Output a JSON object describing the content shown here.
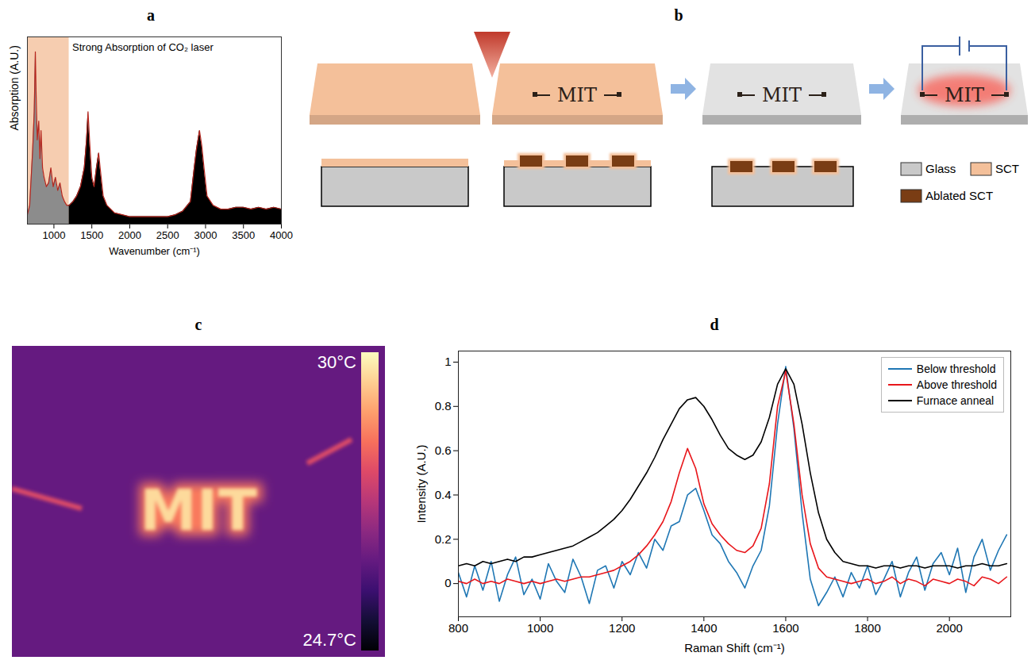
{
  "chart_data": [
    {
      "type": "area",
      "title": "a",
      "x_label": "Wavenumber (cm⁻¹)",
      "y_label": "Absorption (A.U.)",
      "annotation": "Strong Absorption of CO₂ laser",
      "highlight": {
        "x": [
          650,
          1200
        ],
        "color": "#f6cdb0"
      },
      "xlim": [
        650,
        4000
      ],
      "xticks": [
        1000,
        1500,
        2000,
        2500,
        3000,
        3500,
        4000
      ],
      "ylim": [
        0,
        1
      ],
      "yticks": [],
      "tick_labels": "x",
      "grid": false,
      "series": [
        {
          "color": "#8c8c8c",
          "x": [
            650,
            680,
            700,
            720,
            740,
            755,
            765,
            780,
            800,
            815,
            830,
            850,
            870,
            900,
            930,
            960,
            990,
            1020,
            1050,
            1080,
            1110,
            1140,
            1170,
            1200
          ],
          "values": [
            0.05,
            0.1,
            0.25,
            0.4,
            0.6,
            0.92,
            0.7,
            0.45,
            0.55,
            0.35,
            0.5,
            0.3,
            0.25,
            0.2,
            0.22,
            0.3,
            0.2,
            0.25,
            0.18,
            0.22,
            0.15,
            0.12,
            0.1,
            0.1
          ]
        },
        {
          "color": "#000000",
          "x": [
            1200,
            1250,
            1300,
            1350,
            1400,
            1430,
            1450,
            1470,
            1500,
            1530,
            1560,
            1590,
            1610,
            1650,
            1700,
            1800,
            1900,
            2000,
            2100,
            2200,
            2300,
            2400,
            2500,
            2600,
            2700,
            2800,
            2850,
            2880,
            2920,
            2950,
            2980,
            3020,
            3100,
            3200,
            3300,
            3400,
            3500,
            3600,
            3700,
            3800,
            3900,
            4000
          ],
          "values": [
            0.1,
            0.12,
            0.15,
            0.2,
            0.3,
            0.45,
            0.6,
            0.45,
            0.25,
            0.2,
            0.3,
            0.38,
            0.3,
            0.15,
            0.1,
            0.06,
            0.05,
            0.04,
            0.04,
            0.04,
            0.04,
            0.04,
            0.04,
            0.05,
            0.07,
            0.12,
            0.3,
            0.4,
            0.5,
            0.42,
            0.3,
            0.15,
            0.1,
            0.08,
            0.08,
            0.09,
            0.09,
            0.08,
            0.09,
            0.08,
            0.09,
            0.08
          ]
        }
      ]
    },
    {
      "type": "line",
      "title": "d",
      "x_label": "Raman Shift (cm⁻¹)",
      "y_label": "Intensity (A.U.)",
      "xlim": [
        800,
        2150
      ],
      "xticks": [
        800,
        1000,
        1200,
        1400,
        1600,
        1800,
        2000
      ],
      "ylim": [
        -0.15,
        1.05
      ],
      "yticks": [
        0,
        0.2,
        0.4,
        0.6,
        0.8,
        1
      ],
      "legend": "top-right",
      "grid": false,
      "x": [
        800,
        820,
        840,
        860,
        880,
        900,
        920,
        940,
        960,
        980,
        1000,
        1020,
        1040,
        1060,
        1080,
        1100,
        1120,
        1140,
        1160,
        1180,
        1200,
        1220,
        1240,
        1260,
        1280,
        1300,
        1320,
        1340,
        1360,
        1380,
        1400,
        1420,
        1440,
        1460,
        1480,
        1500,
        1520,
        1540,
        1560,
        1580,
        1600,
        1620,
        1640,
        1660,
        1680,
        1700,
        1720,
        1740,
        1760,
        1780,
        1800,
        1820,
        1840,
        1860,
        1880,
        1900,
        1920,
        1940,
        1960,
        1980,
        2000,
        2020,
        2040,
        2060,
        2080,
        2100,
        2120,
        2140
      ],
      "series": [
        {
          "name": "Below threshold",
          "color": "#1f77b4",
          "values": [
            0.05,
            -0.06,
            0.08,
            -0.03,
            0.1,
            -0.08,
            0.04,
            0.12,
            -0.05,
            0.02,
            -0.07,
            0.09,
            0.01,
            -0.04,
            0.11,
            0.03,
            -0.09,
            0.06,
            0.08,
            -0.02,
            0.1,
            0.04,
            0.14,
            0.07,
            0.2,
            0.15,
            0.26,
            0.28,
            0.4,
            0.43,
            0.33,
            0.22,
            0.18,
            0.1,
            0.05,
            -0.02,
            0.08,
            0.15,
            0.35,
            0.72,
            0.98,
            0.7,
            0.32,
            0.02,
            -0.1,
            -0.04,
            0.03,
            -0.06,
            0.05,
            -0.02,
            0.08,
            -0.05,
            0.02,
            0.1,
            -0.06,
            0.05,
            0.12,
            -0.03,
            0.09,
            0.14,
            0.04,
            0.16,
            -0.04,
            0.12,
            0.2,
            0.06,
            0.15,
            0.22
          ]
        },
        {
          "name": "Above threshold",
          "color": "#e8161b",
          "values": [
            0.01,
            0,
            0.02,
            0,
            0.01,
            0,
            0.02,
            0.01,
            0,
            0.01,
            0,
            0.01,
            0.02,
            0.01,
            0.02,
            0.03,
            0.03,
            0.04,
            0.05,
            0.06,
            0.08,
            0.1,
            0.13,
            0.17,
            0.22,
            0.28,
            0.37,
            0.5,
            0.61,
            0.52,
            0.36,
            0.27,
            0.22,
            0.18,
            0.15,
            0.14,
            0.17,
            0.25,
            0.45,
            0.8,
            0.96,
            0.72,
            0.4,
            0.18,
            0.07,
            0.03,
            0.02,
            0.01,
            0,
            0.01,
            0.02,
            0,
            0.01,
            0.03,
            0,
            0.02,
            0.01,
            -0.01,
            0.02,
            0.01,
            0,
            0.02,
            0.01,
            -0.01,
            0.03,
            0.02,
            0,
            0.03
          ]
        },
        {
          "name": "Furnace anneal",
          "color": "#000000",
          "values": [
            0.08,
            0.09,
            0.08,
            0.1,
            0.09,
            0.1,
            0.11,
            0.1,
            0.12,
            0.12,
            0.13,
            0.14,
            0.15,
            0.16,
            0.17,
            0.19,
            0.21,
            0.23,
            0.26,
            0.29,
            0.33,
            0.38,
            0.44,
            0.5,
            0.57,
            0.65,
            0.72,
            0.79,
            0.83,
            0.84,
            0.8,
            0.74,
            0.67,
            0.61,
            0.58,
            0.56,
            0.58,
            0.64,
            0.75,
            0.9,
            0.97,
            0.9,
            0.72,
            0.5,
            0.32,
            0.2,
            0.14,
            0.1,
            0.09,
            0.08,
            0.08,
            0.07,
            0.08,
            0.08,
            0.07,
            0.08,
            0.08,
            0.07,
            0.08,
            0.08,
            0.08,
            0.07,
            0.08,
            0.08,
            0.09,
            0.08,
            0.08,
            0.09
          ]
        }
      ]
    }
  ],
  "diagram": {
    "title": "b",
    "pattern_text": "MIT",
    "legend": [
      {
        "label": "Glass",
        "color": "#c9c9c9"
      },
      {
        "label": "SCT",
        "color": "#f4c09a"
      },
      {
        "label": "Ablated SCT",
        "color": "#7a3d14"
      }
    ]
  },
  "image": {
    "title": "c",
    "pattern_text": "MIT",
    "background_temperature": 26.3,
    "pattern_temperature": 29.6,
    "colorbar": {
      "range": [
        24.7,
        30
      ],
      "ticks": [
        {
          "value": 30,
          "label": "30°C"
        },
        {
          "value": 24.7,
          "label": "24.7°C"
        }
      ]
    }
  }
}
